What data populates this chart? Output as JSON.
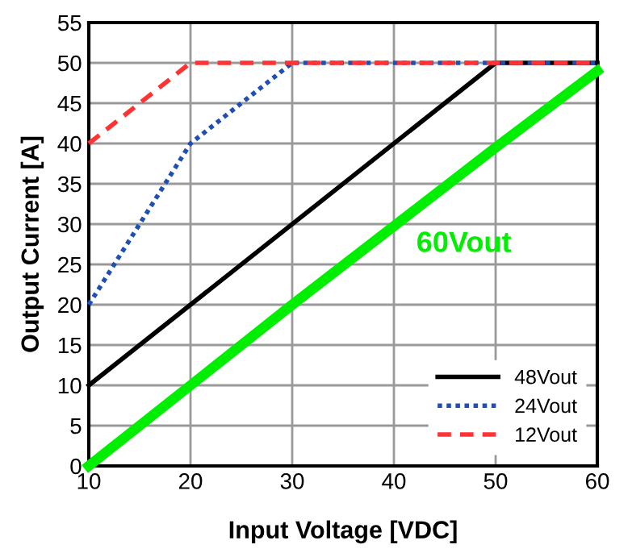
{
  "chart_data": {
    "type": "line",
    "xlabel": "Input Voltage [VDC]",
    "ylabel": "Output Current [A]",
    "series": [
      {
        "name": "48Vout",
        "color": "#000000",
        "line_style": "solid",
        "x": [
          10,
          50,
          60
        ],
        "values": [
          10,
          50,
          50
        ]
      },
      {
        "name": "24Vout",
        "color": "#1f4fb4",
        "line_style": "dotted",
        "x": [
          10,
          20,
          30,
          60
        ],
        "values": [
          20,
          40,
          50,
          50
        ]
      },
      {
        "name": "12Vout",
        "color": "#ff3333",
        "line_style": "dashed",
        "x": [
          10,
          20,
          60
        ],
        "values": [
          40,
          50,
          50
        ]
      },
      {
        "color": "#00ee00",
        "line_style": "solid",
        "x": [
          10,
          30,
          50,
          60
        ],
        "values": [
          0,
          20,
          39.5,
          49
        ]
      }
    ],
    "annotations": [
      {
        "text": "60Vout",
        "x": 40,
        "y": 30
      }
    ],
    "xlim": [
      10,
      60
    ],
    "xticks": [
      10,
      20,
      30,
      40,
      50,
      60
    ],
    "ylim": [
      0,
      55
    ],
    "yticks": [
      0,
      5,
      10,
      15,
      20,
      25,
      30,
      35,
      40,
      45,
      50,
      55
    ],
    "grid": true,
    "legend": "bottom right",
    "marker": "none"
  }
}
